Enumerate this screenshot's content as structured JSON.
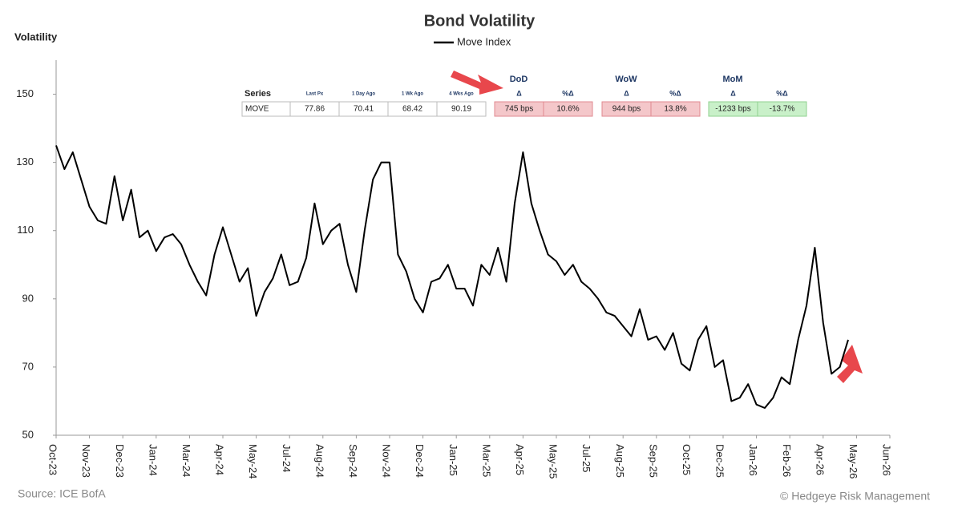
{
  "chart_data": {
    "type": "line",
    "title": "Bond Volatility",
    "ylabel": "Volatility",
    "series": [
      {
        "name": "Move Index",
        "color": "#000000",
        "values": [
          135,
          128,
          133,
          125,
          117,
          113,
          112,
          126,
          113,
          122,
          108,
          110,
          104,
          108,
          109,
          106,
          100,
          95,
          91,
          103,
          111,
          103,
          95,
          99,
          85,
          92,
          96,
          103,
          94,
          95,
          102,
          118,
          106,
          110,
          112,
          100,
          92,
          110,
          125,
          130,
          130,
          103,
          98,
          90,
          86,
          95,
          96,
          100,
          93,
          93,
          88,
          100,
          97,
          105,
          95,
          118,
          133,
          118,
          110,
          103,
          101,
          97,
          100,
          95,
          93,
          90,
          86,
          85,
          82,
          79,
          87,
          78,
          79,
          75,
          80,
          71,
          69,
          78,
          82,
          70,
          72,
          60,
          61,
          65,
          59,
          58,
          61,
          67,
          65,
          78,
          88,
          105,
          83,
          68,
          70,
          78
        ]
      }
    ],
    "xticks": [
      "Oct-23",
      "Nov-23",
      "Dec-23",
      "Jan-24",
      "Mar-24",
      "Apr-24",
      "May-24",
      "Jul-24",
      "Aug-24",
      "Sep-24",
      "Nov-24",
      "Dec-24",
      "Jan-25",
      "Mar-25",
      "Apr-25",
      "May-25",
      "Jul-25",
      "Aug-25",
      "Sep-25",
      "Oct-25",
      "Dec-25",
      "Jan-26",
      "Feb-26",
      "Apr-26",
      "May-26",
      "Jun-26"
    ],
    "ylim": [
      50,
      160
    ],
    "yticks": [
      50,
      70,
      90,
      110,
      130,
      150
    ],
    "grid": false,
    "source": "Source: ICE BofA",
    "credit": "© Hedgeye Risk Management"
  },
  "table": {
    "headers": [
      "Series",
      "Last Px",
      "1 Day Ago",
      "1 Wk Ago",
      "4 Wks Ago"
    ],
    "row": [
      "MOVE",
      "77.86",
      "70.41",
      "68.42",
      "90.19"
    ],
    "groups": [
      {
        "name": "DoD",
        "subheaders": [
          "Δ",
          "%Δ"
        ],
        "cells": [
          "745 bps",
          "10.6%"
        ],
        "tone": "red"
      },
      {
        "name": "WoW",
        "subheaders": [
          "Δ",
          "%Δ"
        ],
        "cells": [
          "944 bps",
          "13.8%"
        ],
        "tone": "red"
      },
      {
        "name": "MoM",
        "subheaders": [
          "Δ",
          "%Δ"
        ],
        "cells": [
          "-1233 bps",
          "-13.7%"
        ],
        "tone": "green"
      }
    ]
  }
}
